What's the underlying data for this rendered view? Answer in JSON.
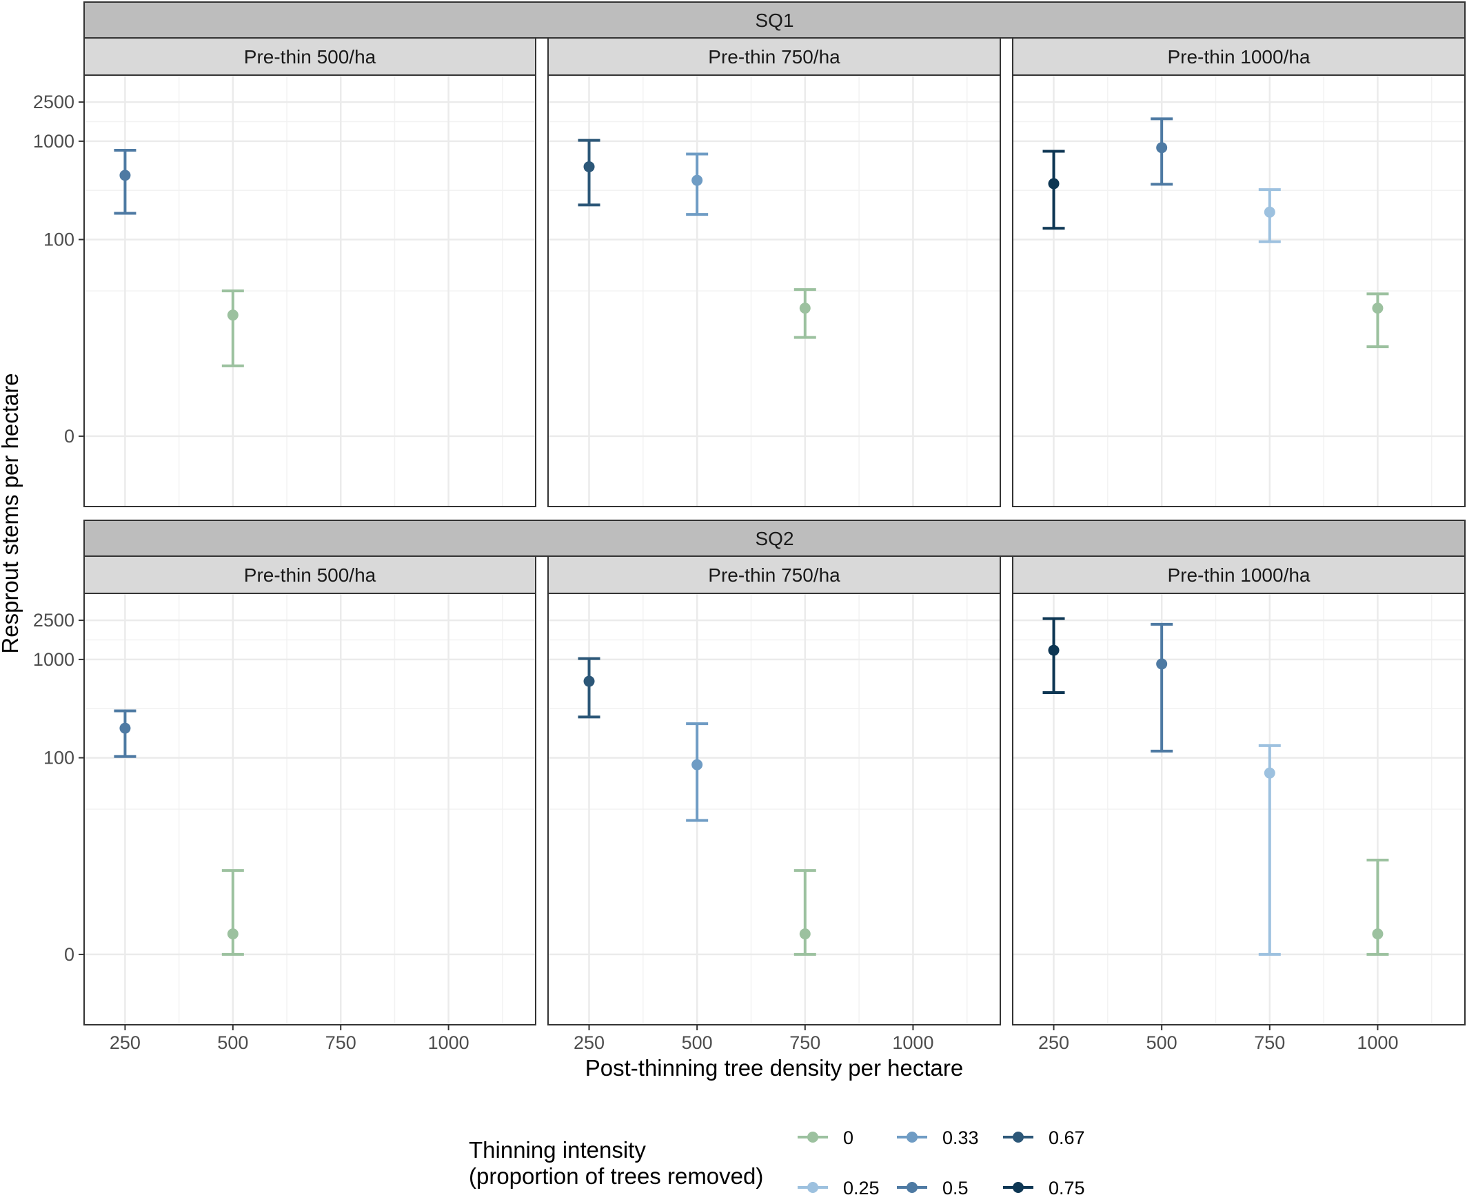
{
  "chart_data": {
    "type": "scatter",
    "subtype": "point-with-errorbars",
    "xlabel": "Post-thinning tree density per hectare",
    "ylabel": "Resprout stems per hectare",
    "x_ticks": [
      250,
      500,
      750,
      1000
    ],
    "y_ticks": [
      0,
      100,
      1000,
      2500
    ],
    "y_scale": "pseudo-log",
    "grid": true,
    "legend": {
      "title_line1": "Thinning intensity",
      "title_line2": "(proportion of trees removed)",
      "position": "bottom",
      "entries": [
        {
          "label": "0",
          "color": "#9cc19f"
        },
        {
          "label": "0.25",
          "color": "#9dc1df"
        },
        {
          "label": "0.33",
          "color": "#6f9cc4"
        },
        {
          "label": "0.5",
          "color": "#4e7aa3"
        },
        {
          "label": "0.67",
          "color": "#2c5778"
        },
        {
          "label": "0.75",
          "color": "#0d3653"
        }
      ]
    },
    "rows": [
      {
        "label": "SQ1",
        "panels": [
          {
            "label": "Pre-thin 500/ha",
            "points": [
              {
                "x": 250,
                "y": 450,
                "lo": 185,
                "hi": 810,
                "intensity": "0.5"
              },
              {
                "x": 500,
                "y": 17,
                "lo": 5,
                "hi": 30,
                "intensity": "0"
              }
            ]
          },
          {
            "label": "Pre-thin 750/ha",
            "points": [
              {
                "x": 250,
                "y": 550,
                "lo": 225,
                "hi": 1020,
                "intensity": "0.67"
              },
              {
                "x": 500,
                "y": 400,
                "lo": 180,
                "hi": 740,
                "intensity": "0.33"
              },
              {
                "x": 750,
                "y": 20,
                "lo": 10,
                "hi": 31,
                "intensity": "0"
              }
            ]
          },
          {
            "label": "Pre-thin 1000/ha",
            "points": [
              {
                "x": 250,
                "y": 370,
                "lo": 130,
                "hi": 790,
                "intensity": "0.75"
              },
              {
                "x": 500,
                "y": 860,
                "lo": 365,
                "hi": 1690,
                "intensity": "0.5"
              },
              {
                "x": 750,
                "y": 190,
                "lo": 95,
                "hi": 322,
                "intensity": "0.25"
              },
              {
                "x": 1000,
                "y": 20,
                "lo": 8,
                "hi": 28,
                "intensity": "0"
              }
            ]
          }
        ]
      },
      {
        "label": "SQ2",
        "panels": [
          {
            "label": "Pre-thin 500/ha",
            "points": [
              {
                "x": 250,
                "y": 200,
                "lo": 103,
                "hi": 300,
                "intensity": "0.5"
              },
              {
                "x": 500,
                "y": 1,
                "lo": 0,
                "hi": 7,
                "intensity": "0"
              }
            ]
          },
          {
            "label": "Pre-thin 750/ha",
            "points": [
              {
                "x": 250,
                "y": 600,
                "lo": 260,
                "hi": 1020,
                "intensity": "0.67"
              },
              {
                "x": 500,
                "y": 85,
                "lo": 23,
                "hi": 222,
                "intensity": "0.33"
              },
              {
                "x": 750,
                "y": 1,
                "lo": 0,
                "hi": 7,
                "intensity": "0"
              }
            ]
          },
          {
            "label": "Pre-thin 1000/ha",
            "points": [
              {
                "x": 250,
                "y": 1240,
                "lo": 460,
                "hi": 2600,
                "intensity": "0.75"
              },
              {
                "x": 500,
                "y": 900,
                "lo": 117,
                "hi": 2280,
                "intensity": "0.5"
              },
              {
                "x": 750,
                "y": 70,
                "lo": 0,
                "hi": 133,
                "intensity": "0.25"
              },
              {
                "x": 1000,
                "y": 1,
                "lo": 0,
                "hi": 9,
                "intensity": "0"
              }
            ]
          }
        ]
      }
    ]
  }
}
